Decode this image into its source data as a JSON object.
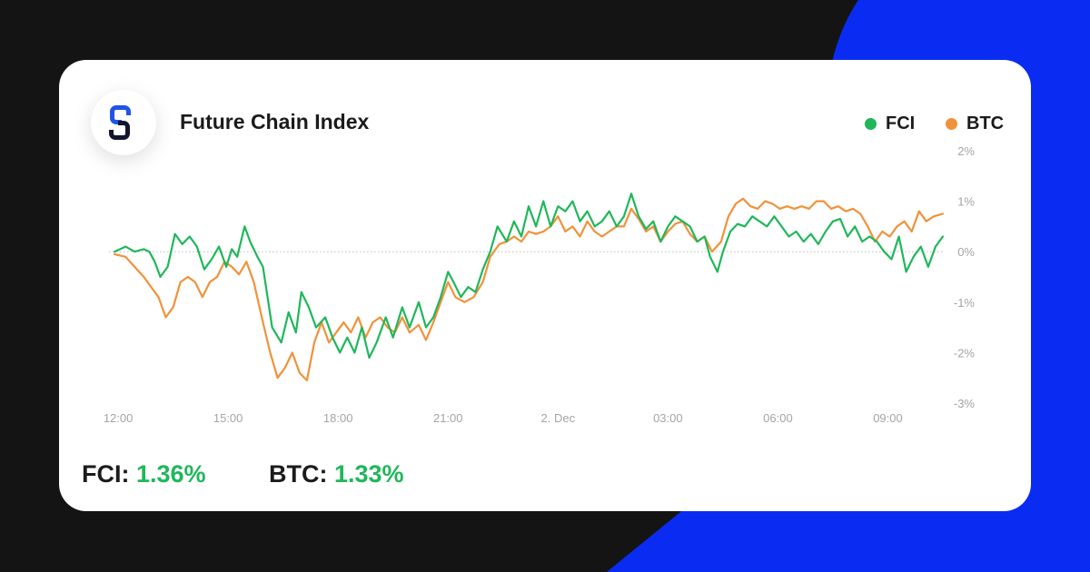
{
  "header": {
    "title": "Future Chain Index"
  },
  "summary": [
    {
      "label": "FCI:",
      "value": "1.36%"
    },
    {
      "label": "BTC:",
      "value": "1.33%"
    }
  ],
  "colors": {
    "fci": "#1fb75a",
    "btc": "#f0923a",
    "axis_text": "#a4a4a4",
    "zero_line": "#bdbdbd",
    "accent_blue": "#0a2cf2",
    "logo_dark": "#13152e",
    "logo_blue": "#1f54e6"
  },
  "logo": {
    "icon": "chain-link-icon"
  },
  "chart_data": {
    "type": "line",
    "title": "",
    "xlabel": "",
    "ylabel": "",
    "x_ticks": [
      "12:00",
      "15:00",
      "18:00",
      "21:00",
      "2. Dec",
      "03:00",
      "06:00",
      "09:00"
    ],
    "y_ticks": [
      "2%",
      "1%",
      "0%",
      "-1%",
      "-2%",
      "-3%"
    ],
    "ylim": [
      -3,
      2
    ],
    "xlim": [
      11.75,
      34.5
    ],
    "x_unit": "hours since 00:00 on 1 Dec (2. Dec = 24)",
    "zero_line": true,
    "legend": "top-right",
    "series": [
      {
        "name": "FCI",
        "points": [
          [
            11.9,
            -0.0
          ],
          [
            12.2,
            0.1
          ],
          [
            12.45,
            0.0
          ],
          [
            12.7,
            0.05
          ],
          [
            12.85,
            0.0
          ],
          [
            13.0,
            -0.2
          ],
          [
            13.15,
            -0.5
          ],
          [
            13.35,
            -0.3
          ],
          [
            13.55,
            0.35
          ],
          [
            13.75,
            0.15
          ],
          [
            13.95,
            0.3
          ],
          [
            14.15,
            0.1
          ],
          [
            14.35,
            -0.35
          ],
          [
            14.55,
            -0.15
          ],
          [
            14.75,
            0.1
          ],
          [
            14.95,
            -0.3
          ],
          [
            15.1,
            0.05
          ],
          [
            15.25,
            -0.1
          ],
          [
            15.45,
            0.5
          ],
          [
            15.6,
            0.2
          ],
          [
            15.8,
            -0.1
          ],
          [
            15.95,
            -0.3
          ],
          [
            16.2,
            -1.5
          ],
          [
            16.45,
            -1.8
          ],
          [
            16.65,
            -1.2
          ],
          [
            16.85,
            -1.6
          ],
          [
            17.0,
            -0.8
          ],
          [
            17.2,
            -1.1
          ],
          [
            17.4,
            -1.5
          ],
          [
            17.65,
            -1.3
          ],
          [
            17.85,
            -1.7
          ],
          [
            18.05,
            -2.0
          ],
          [
            18.25,
            -1.7
          ],
          [
            18.45,
            -2.0
          ],
          [
            18.65,
            -1.5
          ],
          [
            18.85,
            -2.1
          ],
          [
            19.05,
            -1.8
          ],
          [
            19.3,
            -1.3
          ],
          [
            19.5,
            -1.7
          ],
          [
            19.75,
            -1.1
          ],
          [
            19.95,
            -1.5
          ],
          [
            20.2,
            -1.0
          ],
          [
            20.4,
            -1.5
          ],
          [
            20.6,
            -1.3
          ],
          [
            20.8,
            -0.9
          ],
          [
            21.0,
            -0.4
          ],
          [
            21.15,
            -0.6
          ],
          [
            21.35,
            -0.9
          ],
          [
            21.55,
            -0.7
          ],
          [
            21.75,
            -0.8
          ],
          [
            21.95,
            -0.35
          ],
          [
            22.15,
            0.0
          ],
          [
            22.35,
            0.5
          ],
          [
            22.6,
            0.2
          ],
          [
            22.8,
            0.6
          ],
          [
            23.0,
            0.3
          ],
          [
            23.2,
            0.9
          ],
          [
            23.4,
            0.5
          ],
          [
            23.6,
            1.0
          ],
          [
            23.8,
            0.5
          ],
          [
            24.0,
            0.9
          ],
          [
            24.2,
            0.8
          ],
          [
            24.4,
            1.0
          ],
          [
            24.6,
            0.6
          ],
          [
            24.8,
            0.8
          ],
          [
            25.0,
            0.5
          ],
          [
            25.2,
            0.6
          ],
          [
            25.4,
            0.8
          ],
          [
            25.6,
            0.5
          ],
          [
            25.8,
            0.7
          ],
          [
            26.0,
            1.15
          ],
          [
            26.2,
            0.7
          ],
          [
            26.4,
            0.45
          ],
          [
            26.6,
            0.6
          ],
          [
            26.8,
            0.2
          ],
          [
            27.0,
            0.5
          ],
          [
            27.2,
            0.7
          ],
          [
            27.4,
            0.6
          ],
          [
            27.6,
            0.5
          ],
          [
            27.8,
            0.2
          ],
          [
            28.0,
            0.3
          ],
          [
            28.15,
            -0.1
          ],
          [
            28.35,
            -0.4
          ],
          [
            28.5,
            0.0
          ],
          [
            28.7,
            0.4
          ],
          [
            28.9,
            0.55
          ],
          [
            29.1,
            0.5
          ],
          [
            29.3,
            0.7
          ],
          [
            29.5,
            0.6
          ],
          [
            29.7,
            0.5
          ],
          [
            29.9,
            0.7
          ],
          [
            30.1,
            0.5
          ],
          [
            30.3,
            0.3
          ],
          [
            30.5,
            0.4
          ],
          [
            30.7,
            0.2
          ],
          [
            30.9,
            0.35
          ],
          [
            31.1,
            0.15
          ],
          [
            31.3,
            0.4
          ],
          [
            31.5,
            0.6
          ],
          [
            31.7,
            0.65
          ],
          [
            31.9,
            0.3
          ],
          [
            32.1,
            0.5
          ],
          [
            32.3,
            0.2
          ],
          [
            32.5,
            0.3
          ],
          [
            32.7,
            0.2
          ],
          [
            32.9,
            0.0
          ],
          [
            33.1,
            -0.15
          ],
          [
            33.3,
            0.3
          ],
          [
            33.5,
            -0.4
          ],
          [
            33.7,
            -0.1
          ],
          [
            33.9,
            0.1
          ],
          [
            34.1,
            -0.3
          ],
          [
            34.3,
            0.1
          ],
          [
            34.5,
            0.3
          ]
        ]
      },
      {
        "name": "BTC",
        "points": [
          [
            11.9,
            -0.05
          ],
          [
            12.2,
            -0.1
          ],
          [
            12.45,
            -0.3
          ],
          [
            12.7,
            -0.5
          ],
          [
            12.9,
            -0.7
          ],
          [
            13.1,
            -0.9
          ],
          [
            13.3,
            -1.3
          ],
          [
            13.5,
            -1.1
          ],
          [
            13.7,
            -0.6
          ],
          [
            13.9,
            -0.5
          ],
          [
            14.1,
            -0.6
          ],
          [
            14.3,
            -0.9
          ],
          [
            14.5,
            -0.6
          ],
          [
            14.7,
            -0.5
          ],
          [
            14.9,
            -0.2
          ],
          [
            15.1,
            -0.3
          ],
          [
            15.3,
            -0.45
          ],
          [
            15.5,
            -0.2
          ],
          [
            15.7,
            -0.6
          ],
          [
            15.95,
            -1.4
          ],
          [
            16.15,
            -2.0
          ],
          [
            16.35,
            -2.5
          ],
          [
            16.55,
            -2.3
          ],
          [
            16.75,
            -2.0
          ],
          [
            16.95,
            -2.4
          ],
          [
            17.15,
            -2.55
          ],
          [
            17.35,
            -1.8
          ],
          [
            17.55,
            -1.4
          ],
          [
            17.75,
            -1.8
          ],
          [
            17.95,
            -1.6
          ],
          [
            18.15,
            -1.4
          ],
          [
            18.35,
            -1.6
          ],
          [
            18.55,
            -1.3
          ],
          [
            18.75,
            -1.7
          ],
          [
            18.95,
            -1.4
          ],
          [
            19.15,
            -1.3
          ],
          [
            19.35,
            -1.5
          ],
          [
            19.55,
            -1.6
          ],
          [
            19.75,
            -1.3
          ],
          [
            19.95,
            -1.6
          ],
          [
            20.2,
            -1.45
          ],
          [
            20.4,
            -1.75
          ],
          [
            20.6,
            -1.4
          ],
          [
            20.8,
            -1.0
          ],
          [
            21.0,
            -0.6
          ],
          [
            21.2,
            -0.9
          ],
          [
            21.45,
            -1.0
          ],
          [
            21.7,
            -0.9
          ],
          [
            21.95,
            -0.6
          ],
          [
            22.15,
            -0.1
          ],
          [
            22.4,
            0.15
          ],
          [
            22.6,
            0.2
          ],
          [
            22.8,
            0.3
          ],
          [
            23.0,
            0.2
          ],
          [
            23.2,
            0.4
          ],
          [
            23.4,
            0.35
          ],
          [
            23.6,
            0.4
          ],
          [
            23.8,
            0.5
          ],
          [
            24.0,
            0.7
          ],
          [
            24.2,
            0.4
          ],
          [
            24.4,
            0.5
          ],
          [
            24.6,
            0.3
          ],
          [
            24.8,
            0.6
          ],
          [
            25.0,
            0.4
          ],
          [
            25.2,
            0.3
          ],
          [
            25.4,
            0.4
          ],
          [
            25.6,
            0.5
          ],
          [
            25.8,
            0.5
          ],
          [
            26.0,
            0.85
          ],
          [
            26.2,
            0.65
          ],
          [
            26.4,
            0.4
          ],
          [
            26.6,
            0.5
          ],
          [
            26.8,
            0.2
          ],
          [
            27.0,
            0.4
          ],
          [
            27.2,
            0.55
          ],
          [
            27.4,
            0.6
          ],
          [
            27.6,
            0.35
          ],
          [
            27.8,
            0.2
          ],
          [
            28.0,
            0.3
          ],
          [
            28.2,
            0.0
          ],
          [
            28.45,
            0.2
          ],
          [
            28.65,
            0.7
          ],
          [
            28.85,
            0.95
          ],
          [
            29.05,
            1.05
          ],
          [
            29.25,
            0.9
          ],
          [
            29.45,
            0.85
          ],
          [
            29.65,
            1.0
          ],
          [
            29.85,
            0.95
          ],
          [
            30.05,
            0.85
          ],
          [
            30.25,
            0.9
          ],
          [
            30.45,
            0.85
          ],
          [
            30.65,
            0.9
          ],
          [
            30.85,
            0.85
          ],
          [
            31.05,
            1.0
          ],
          [
            31.25,
            1.0
          ],
          [
            31.45,
            0.85
          ],
          [
            31.65,
            0.9
          ],
          [
            31.85,
            0.8
          ],
          [
            32.05,
            0.85
          ],
          [
            32.25,
            0.75
          ],
          [
            32.45,
            0.5
          ],
          [
            32.65,
            0.2
          ],
          [
            32.85,
            0.4
          ],
          [
            33.05,
            0.3
          ],
          [
            33.25,
            0.5
          ],
          [
            33.45,
            0.6
          ],
          [
            33.65,
            0.4
          ],
          [
            33.85,
            0.8
          ],
          [
            34.05,
            0.6
          ],
          [
            34.25,
            0.7
          ],
          [
            34.5,
            0.75
          ]
        ]
      }
    ]
  }
}
